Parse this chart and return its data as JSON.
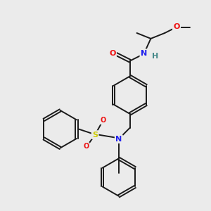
{
  "background_color": "#ebebeb",
  "bond_color": "#1a1a1a",
  "atom_colors": {
    "O": "#ee1111",
    "N": "#2222ee",
    "S": "#cccc00",
    "H": "#448888",
    "C": "#1a1a1a"
  },
  "figsize": [
    3.0,
    3.0
  ],
  "dpi": 100,
  "bond_lw": 1.4,
  "ring_r": 27
}
